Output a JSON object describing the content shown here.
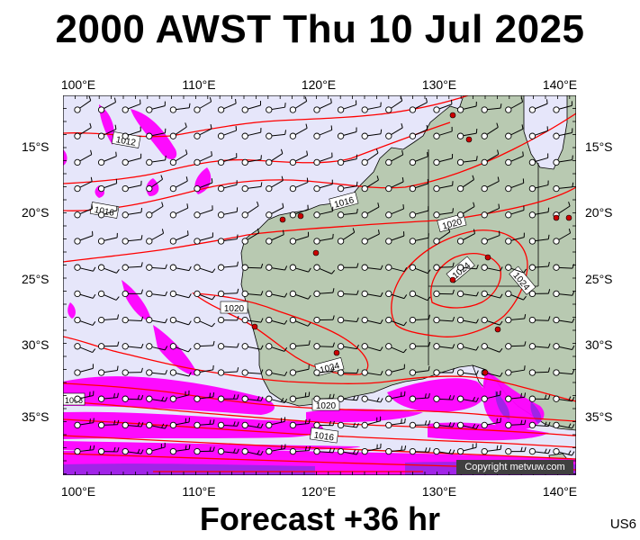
{
  "title": "2000 AWST Thu 10 Jul 2025",
  "footer": "Forecast +36 hr",
  "code": "US6",
  "copyright": "Copyright metvuw.com",
  "lon_labels": [
    "100°E",
    "110°E",
    "120°E",
    "130°E",
    "140°E"
  ],
  "lat_labels": [
    "15°S",
    "20°S",
    "25°S",
    "30°S",
    "35°S"
  ],
  "isobar_labels": [
    "1012",
    "1016",
    "1016",
    "1020",
    "1024",
    "1024",
    "1020",
    "1024",
    "1020",
    "1016",
    "1008"
  ],
  "colors": {
    "ocean": "#e6e6fa",
    "land": "#b8c9b1",
    "isobar": "#ff0000",
    "rain": "#ff00ff",
    "heavy_rain": "#8a2be2"
  }
}
